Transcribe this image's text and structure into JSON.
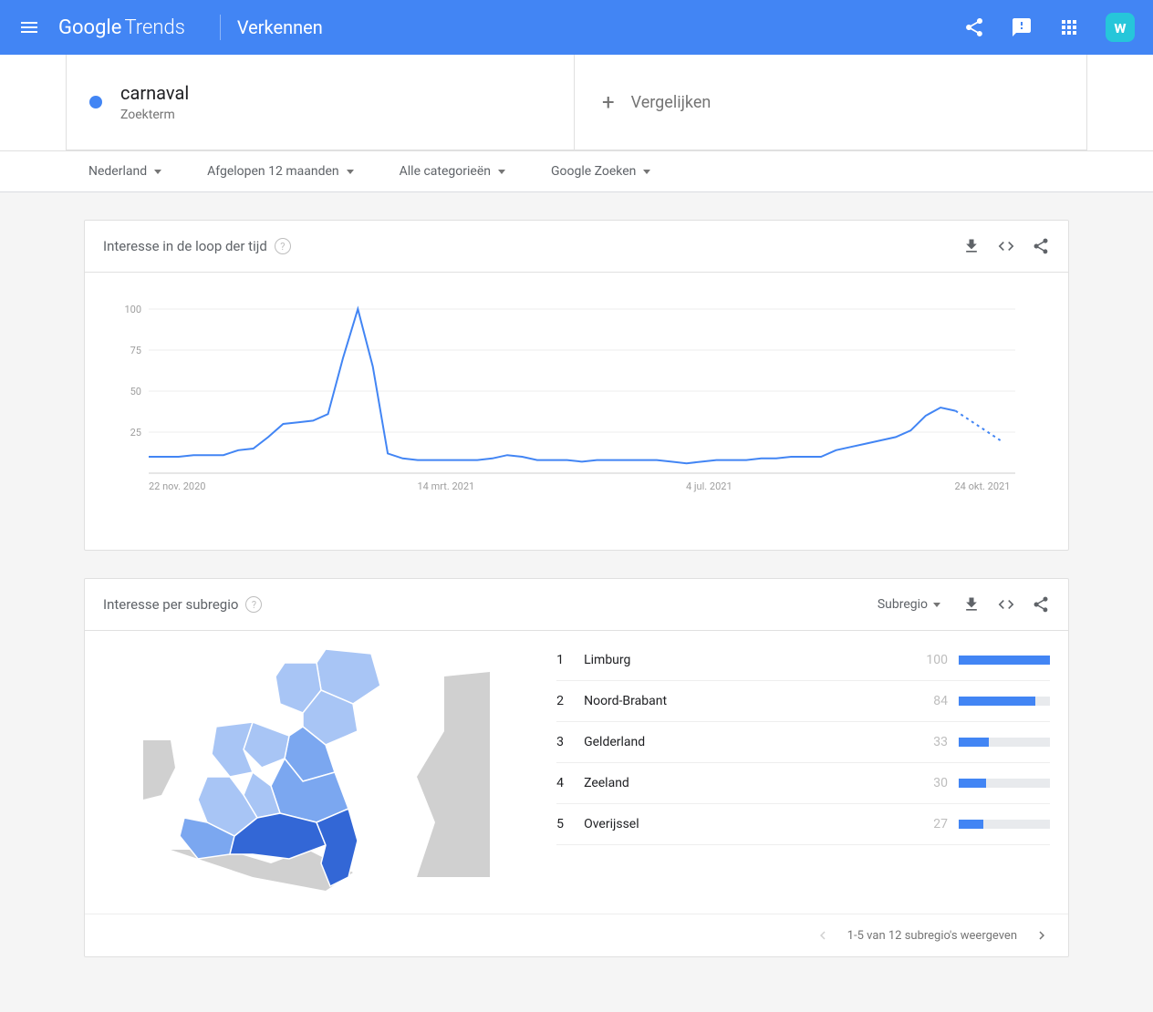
{
  "header": {
    "logo_google": "Google",
    "logo_trends": "Trends",
    "page_title": "Verkennen"
  },
  "search": {
    "term": "carnaval",
    "type_label": "Zoekterm",
    "compare_label": "Vergelijken"
  },
  "filters": {
    "country": "Nederland",
    "timerange": "Afgelopen 12 maanden",
    "category": "Alle categorieën",
    "search_type": "Google Zoeken"
  },
  "timechart": {
    "title": "Interesse in de loop der tijd",
    "ylim": [
      0,
      100
    ],
    "ytick_step": 25,
    "ylabels": [
      "25",
      "50",
      "75",
      "100"
    ],
    "xlabels": [
      "22 nov. 2020",
      "14 mrt. 2021",
      "4 jul. 2021",
      "24 okt. 2021"
    ],
    "line_color": "#4285f4",
    "line_width": 2,
    "grid_color": "#eeeeee",
    "axis_label_color": "#9e9e9e",
    "axis_label_fontsize": 11,
    "background_color": "#ffffff",
    "values": [
      10,
      10,
      10,
      11,
      11,
      11,
      14,
      15,
      22,
      30,
      31,
      32,
      36,
      70,
      100,
      65,
      12,
      9,
      8,
      8,
      8,
      8,
      8,
      9,
      11,
      10,
      8,
      8,
      8,
      7,
      8,
      8,
      8,
      8,
      8,
      7,
      6,
      7,
      8,
      8,
      8,
      9,
      9,
      10,
      10,
      10,
      14,
      16,
      18,
      20,
      22,
      26,
      35,
      40,
      38
    ],
    "forecast_values": [
      38,
      32,
      26,
      20
    ],
    "n_solid": 54
  },
  "regions": {
    "title": "Interesse per subregio",
    "selector_label": "Subregio",
    "bar_color": "#4285f4",
    "bar_bg": "#e8eaed",
    "value_color": "#bdbdbd",
    "items": [
      {
        "rank": "1",
        "name": "Limburg",
        "value": 100
      },
      {
        "rank": "2",
        "name": "Noord-Brabant",
        "value": 84
      },
      {
        "rank": "3",
        "name": "Gelderland",
        "value": 33
      },
      {
        "rank": "4",
        "name": "Zeeland",
        "value": 30
      },
      {
        "rank": "5",
        "name": "Overijssel",
        "value": 27
      }
    ],
    "pagination_text": "1-5 van 12 subregio's weergeven",
    "map": {
      "water_color": "#f5f5f5",
      "outline_color": "#ffffff",
      "palette_dark": "#3367d6",
      "palette_mid": "#7ba7f0",
      "palette_light": "#a8c5f5",
      "neighbor_color": "#d0d0d0"
    }
  }
}
